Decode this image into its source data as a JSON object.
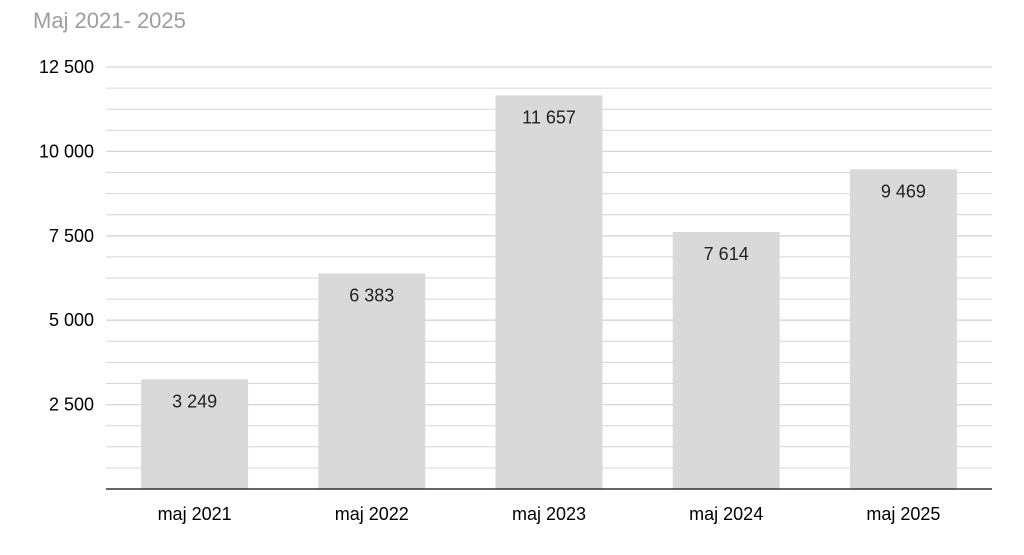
{
  "chart_data": {
    "type": "bar",
    "title": "Maj 2021- 2025",
    "xlabel": "",
    "ylabel": "",
    "categories": [
      "maj 2021",
      "maj 2022",
      "maj 2023",
      "maj 2024",
      "maj 2025"
    ],
    "values": [
      3249,
      6383,
      11657,
      7614,
      9469
    ],
    "value_labels": [
      "3 249",
      "6 383",
      "11 657",
      "7 614",
      "9 469"
    ],
    "ylim": [
      0,
      12500
    ],
    "yticks": [
      2500,
      5000,
      7500,
      10000,
      12500
    ],
    "ytick_labels": [
      "2 500",
      "5 000",
      "7 500",
      "10 000",
      "12 500"
    ],
    "minor_step": 625,
    "grid": true,
    "legend": "none",
    "bar_color": "#d9d9d9",
    "grid_color": "#d6d6d6",
    "axis_color": "#333333"
  }
}
